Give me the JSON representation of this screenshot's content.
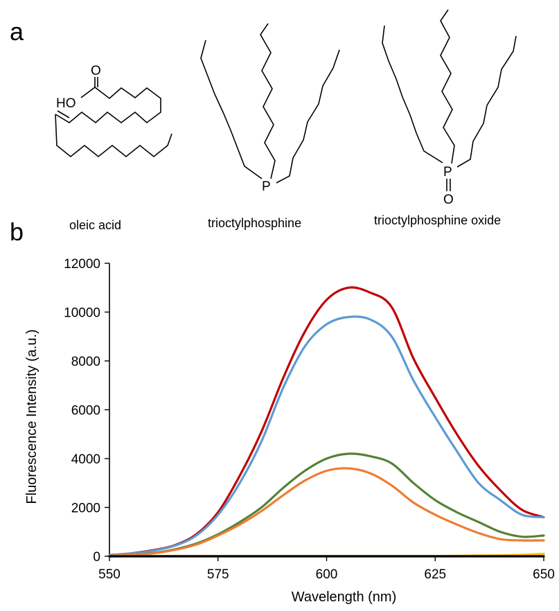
{
  "panel_a": {
    "letter": "a",
    "molecules": [
      {
        "name": "oleic acid",
        "atoms": [
          "O",
          "HO"
        ]
      },
      {
        "name": "trioctylphosphine",
        "atoms": [
          "P"
        ]
      },
      {
        "name": "trioctylphosphine oxide",
        "atoms": [
          "P",
          "O"
        ]
      }
    ]
  },
  "panel_b": {
    "letter": "b"
  },
  "chart_data": {
    "type": "line",
    "title": "",
    "xlabel": "Wavelength (nm)",
    "ylabel": "Fluorescence Intensity  (a.u.)",
    "xlim": [
      550,
      650
    ],
    "ylim": [
      0,
      12000
    ],
    "xticks": [
      550,
      575,
      600,
      625,
      650
    ],
    "yticks": [
      0,
      2000,
      4000,
      6000,
      8000,
      10000,
      12000
    ],
    "grid": false,
    "legend": "none",
    "x": [
      550,
      555,
      560,
      565,
      570,
      575,
      580,
      585,
      590,
      595,
      600,
      605,
      610,
      615,
      620,
      625,
      630,
      635,
      640,
      645,
      650
    ],
    "series": [
      {
        "color": "#c00000",
        "values": [
          50,
          120,
          250,
          450,
          900,
          1800,
          3300,
          5100,
          7300,
          9200,
          10500,
          11000,
          10800,
          10200,
          8100,
          6500,
          5000,
          3700,
          2700,
          1900,
          1600
        ]
      },
      {
        "color": "#5b9bd5",
        "values": [
          50,
          110,
          230,
          430,
          850,
          1700,
          3000,
          4700,
          6900,
          8600,
          9500,
          9800,
          9700,
          9000,
          7200,
          5700,
          4300,
          3000,
          2300,
          1700,
          1600
        ]
      },
      {
        "color": "#548235",
        "values": [
          20,
          60,
          130,
          280,
          520,
          900,
          1400,
          2000,
          2800,
          3500,
          4000,
          4200,
          4100,
          3800,
          3000,
          2300,
          1800,
          1400,
          1000,
          800,
          850
        ]
      },
      {
        "color": "#ed7d31",
        "values": [
          20,
          60,
          120,
          260,
          480,
          850,
          1300,
          1850,
          2500,
          3100,
          3500,
          3600,
          3400,
          2900,
          2200,
          1700,
          1300,
          950,
          700,
          650,
          650
        ]
      },
      {
        "color": "#ffc000",
        "values": [
          10,
          10,
          10,
          10,
          10,
          10,
          10,
          10,
          10,
          10,
          10,
          10,
          10,
          10,
          10,
          10,
          20,
          30,
          40,
          60,
          100
        ]
      },
      {
        "color": "#000000",
        "values": [
          0,
          0,
          0,
          0,
          0,
          0,
          0,
          0,
          0,
          0,
          0,
          0,
          0,
          0,
          0,
          0,
          0,
          0,
          0,
          0,
          0
        ]
      }
    ]
  }
}
